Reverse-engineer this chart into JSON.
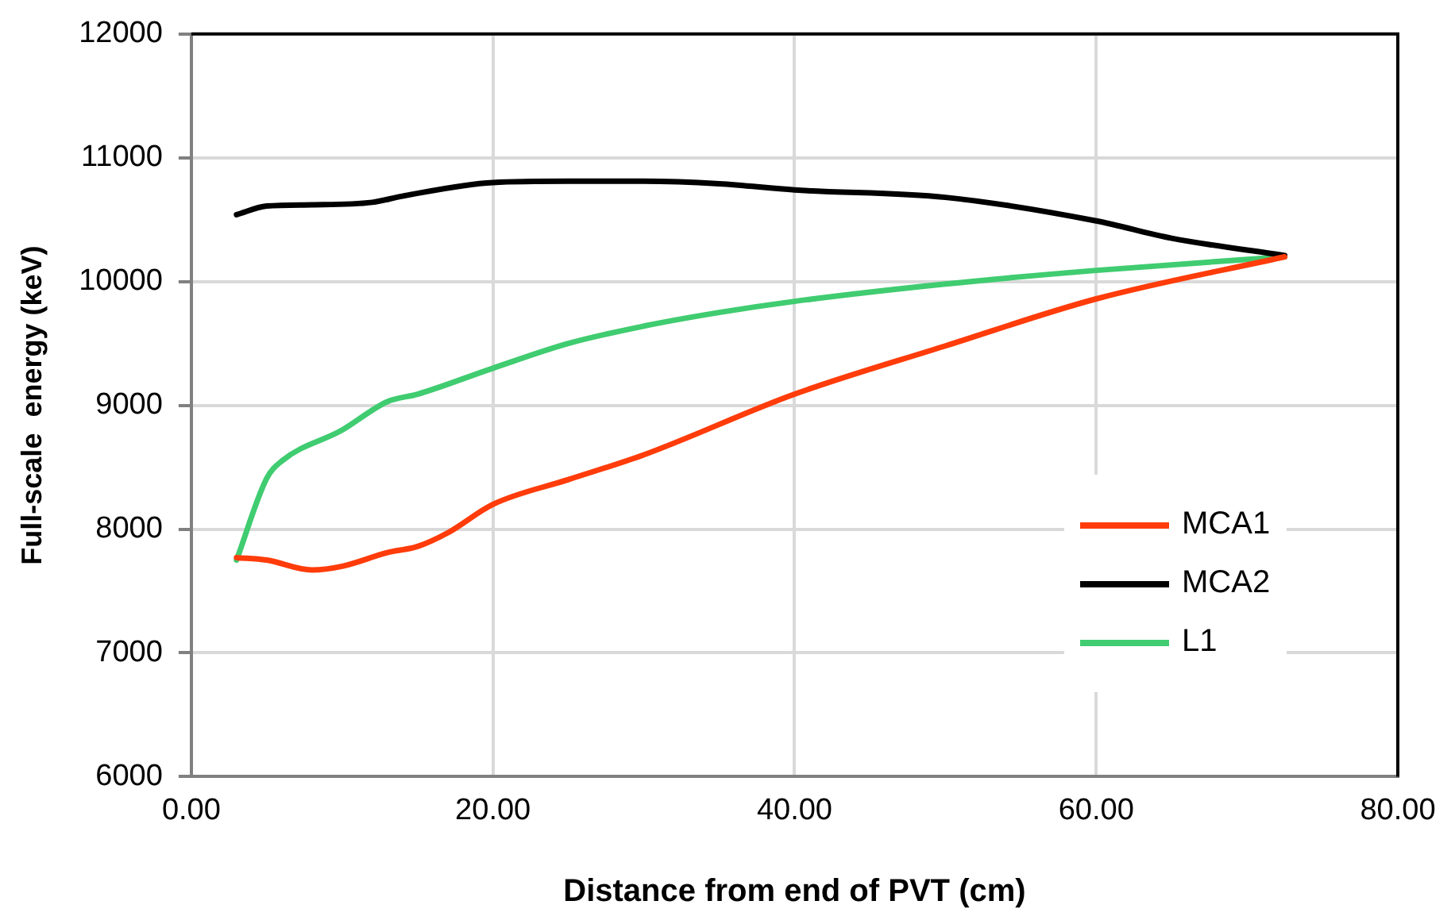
{
  "chart_data": {
    "type": "line",
    "xlabel": "Distance from end of PVT (cm)",
    "ylabel": "Full-scale  energy (keV)",
    "xlim": [
      0,
      80
    ],
    "xticks": [
      {
        "value": 0,
        "label": "0.00"
      },
      {
        "value": 20,
        "label": "20.00"
      },
      {
        "value": 40,
        "label": "40.00"
      },
      {
        "value": 60,
        "label": "60.00"
      },
      {
        "value": 80,
        "label": "80.00"
      }
    ],
    "ylim": [
      6000,
      12000
    ],
    "yticks": [
      6000,
      7000,
      8000,
      9000,
      10000,
      11000,
      12000
    ],
    "grid": true,
    "legend": "bottom right",
    "marker": "none",
    "line_style": "solid",
    "series": [
      {
        "name": "MCA1",
        "color": "#ff3c0a",
        "x": [
          3,
          5,
          8,
          10,
          13,
          15,
          17,
          20,
          25,
          30,
          40,
          50,
          60,
          72.5
        ],
        "values": [
          7770,
          7750,
          7670,
          7700,
          7810,
          7860,
          7970,
          8200,
          8400,
          8600,
          9090,
          9480,
          9860,
          10200
        ]
      },
      {
        "name": "MCA2",
        "color": "#000000",
        "x": [
          3,
          5,
          8,
          12,
          14,
          20,
          25,
          30,
          35,
          40,
          50,
          60,
          65,
          72.5
        ],
        "values": [
          10540,
          10610,
          10620,
          10640,
          10690,
          10800,
          10810,
          10810,
          10790,
          10740,
          10680,
          10490,
          10350,
          10210
        ]
      },
      {
        "name": "L1",
        "color": "#40cc70",
        "x": [
          3,
          5,
          6,
          10,
          13,
          15,
          20,
          25,
          30,
          35,
          40,
          50,
          60,
          72.5
        ],
        "values": [
          7750,
          8410,
          8550,
          8800,
          9030,
          9090,
          9300,
          9500,
          9640,
          9750,
          9840,
          9980,
          10090,
          10200
        ]
      }
    ]
  }
}
